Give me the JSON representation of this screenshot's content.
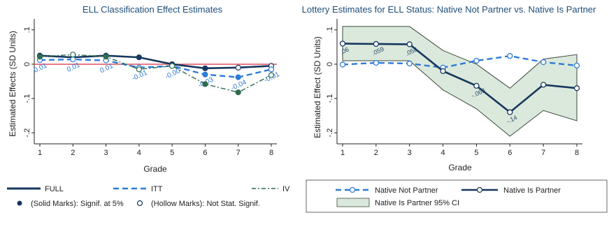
{
  "colors": {
    "full": "#17375e",
    "itt": "#2e7bd6",
    "iv": "#2e6b4f",
    "zero_line": "#e05060",
    "ci_fill": "#dbe9dc",
    "ci_stroke": "#3a4a3a",
    "axis": "#222222"
  },
  "chart_data": [
    {
      "type": "line",
      "title": "ELL Classification Effect Estimates",
      "xlabel": "Grade",
      "ylabel": "Estimated Effects (SD Units)",
      "x": [
        1,
        2,
        3,
        4,
        5,
        6,
        7,
        8
      ],
      "x_ticks": [
        "1",
        "2",
        "3",
        "4",
        "5",
        "6",
        "7",
        "8"
      ],
      "ylim": [
        -0.22,
        0.12
      ],
      "y_ticks": [
        {
          "value": 0.1,
          "label": ".1"
        },
        {
          "value": 0,
          "label": "0"
        },
        {
          "value": -0.1,
          "label": "-.1"
        },
        {
          "value": -0.2,
          "label": "-.2"
        }
      ],
      "grid": false,
      "reference_line": 0,
      "series": [
        {
          "name": "FULL",
          "style": "solid",
          "values": [
            0.025,
            0.02,
            0.025,
            0.02,
            0.0,
            -0.012,
            -0.01,
            -0.005
          ],
          "significant": [
            true,
            true,
            true,
            true,
            true,
            true,
            false,
            false
          ]
        },
        {
          "name": "ITT",
          "style": "dashed",
          "values": [
            0.012,
            0.014,
            0.011,
            -0.01,
            -0.005,
            -0.03,
            -0.038,
            -0.015
          ],
          "significant": [
            false,
            false,
            false,
            false,
            false,
            true,
            true,
            false
          ],
          "labels": [
            "0.01",
            "0.01",
            "0.01",
            "-0.01",
            "-0.00",
            "-0.03",
            "-0.04",
            "-0.01"
          ]
        },
        {
          "name": "IV",
          "style": "dashdot",
          "values": [
            0.022,
            0.028,
            0.022,
            -0.015,
            -0.005,
            -0.058,
            -0.082,
            -0.032
          ],
          "significant": [
            true,
            false,
            true,
            false,
            false,
            true,
            true,
            false
          ]
        }
      ],
      "legend": {
        "position": "bottom",
        "items": [
          "FULL",
          "ITT",
          "IV"
        ],
        "marker_items": [
          "(Solid Marks): Signif. at 5%",
          "(Hollow Marks): Not Stat. Signif."
        ]
      }
    },
    {
      "type": "line",
      "title": "Lottery Estimates for ELL Status: Native Not Partner vs. Native Is Partner",
      "xlabel": "Grade",
      "ylabel": "Estimated Effect (SD Units)",
      "x": [
        1,
        2,
        3,
        4,
        5,
        6,
        7,
        8
      ],
      "x_ticks": [
        "1",
        "2",
        "3",
        "4",
        "5",
        "6",
        "7",
        "8"
      ],
      "ylim": [
        -0.22,
        0.12
      ],
      "y_ticks": [
        {
          "value": 0.1,
          "label": ".1"
        },
        {
          "value": 0,
          "label": "0"
        },
        {
          "value": -0.1,
          "label": "-.1"
        },
        {
          "value": -0.2,
          "label": "-.2"
        }
      ],
      "grid": false,
      "series": [
        {
          "name": "Native Not Partner",
          "style": "dashed",
          "values": [
            -0.001,
            0.004,
            0.002,
            -0.01,
            0.01,
            0.024,
            0.006,
            -0.004
          ]
        },
        {
          "name": "Native Is Partner",
          "style": "solid",
          "values": [
            0.06,
            0.059,
            0.058,
            -0.02,
            -0.063,
            -0.14,
            -0.06,
            -0.07
          ],
          "labels": [
            ".06",
            ".059",
            ".058",
            "",
            "-.063",
            "-.14",
            "",
            ""
          ]
        }
      ],
      "ci_band": {
        "name": "Native Is Partner 95% CI",
        "upper": [
          0.11,
          0.11,
          0.11,
          0.04,
          0.0,
          -0.07,
          0.015,
          0.028
        ],
        "lower": [
          0.01,
          0.01,
          0.01,
          -0.075,
          -0.13,
          -0.21,
          -0.135,
          -0.165
        ]
      },
      "legend": {
        "position": "bottom",
        "items": [
          "Native Not Partner",
          "Native Is Partner",
          "Native Is Partner 95% CI"
        ]
      }
    }
  ]
}
